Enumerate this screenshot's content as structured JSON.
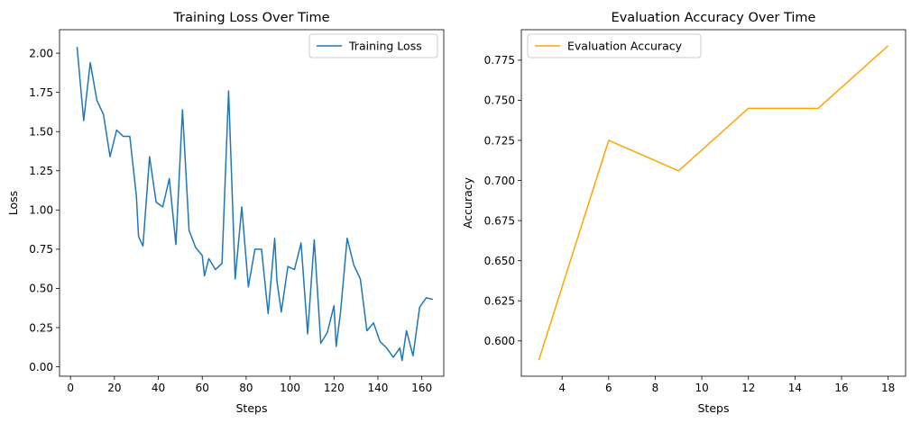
{
  "chart_data": [
    {
      "type": "line",
      "title": "Training Loss Over Time",
      "xlabel": "Steps",
      "ylabel": "Loss",
      "xlim": [
        -5,
        170
      ],
      "ylim": [
        -0.06,
        2.15
      ],
      "xticks": [
        0,
        20,
        40,
        60,
        80,
        100,
        120,
        140,
        160
      ],
      "yticks": [
        0.0,
        0.25,
        0.5,
        0.75,
        1.0,
        1.25,
        1.5,
        1.75,
        2.0
      ],
      "ytick_decimals": 2,
      "legend": "top-right",
      "grid": false,
      "series": [
        {
          "name": "Training Loss",
          "color": "#1f77b4",
          "x": [
            3,
            6,
            9,
            12,
            15,
            18,
            21,
            24,
            27,
            30,
            31,
            33,
            36,
            39,
            42,
            45,
            48,
            51,
            54,
            57,
            60,
            61,
            63,
            66,
            69,
            72,
            75,
            78,
            81,
            84,
            87,
            90,
            93,
            94,
            96,
            99,
            102,
            105,
            108,
            111,
            114,
            117,
            120,
            121,
            123,
            126,
            129,
            132,
            135,
            138,
            141,
            144,
            147,
            150,
            151,
            153,
            156,
            159,
            162,
            165
          ],
          "y": [
            2.04,
            1.57,
            1.94,
            1.7,
            1.61,
            1.34,
            1.51,
            1.47,
            1.47,
            1.09,
            0.83,
            0.77,
            1.34,
            1.05,
            1.02,
            1.2,
            0.78,
            1.64,
            0.87,
            0.76,
            0.71,
            0.58,
            0.69,
            0.62,
            0.66,
            1.76,
            0.56,
            1.02,
            0.51,
            0.75,
            0.75,
            0.34,
            0.82,
            0.55,
            0.35,
            0.64,
            0.62,
            0.79,
            0.21,
            0.81,
            0.15,
            0.22,
            0.39,
            0.13,
            0.35,
            0.82,
            0.65,
            0.56,
            0.23,
            0.28,
            0.16,
            0.12,
            0.06,
            0.12,
            0.04,
            0.23,
            0.07,
            0.38,
            0.44,
            0.43
          ]
        }
      ]
    },
    {
      "type": "line",
      "title": "Evaluation Accuracy Over Time",
      "xlabel": "Steps",
      "ylabel": "Accuracy",
      "xlim": [
        2.25,
        18.75
      ],
      "ylim": [
        0.578,
        0.794
      ],
      "xticks": [
        4,
        6,
        8,
        10,
        12,
        14,
        16,
        18
      ],
      "yticks": [
        0.6,
        0.625,
        0.65,
        0.675,
        0.7,
        0.725,
        0.75,
        0.775
      ],
      "ytick_decimals": 3,
      "legend": "top-left",
      "grid": false,
      "series": [
        {
          "name": "Evaluation Accuracy",
          "color": "#ffa500",
          "x": [
            3,
            6,
            9,
            12,
            15,
            18
          ],
          "y": [
            0.588,
            0.725,
            0.706,
            0.745,
            0.745,
            0.784
          ]
        }
      ]
    }
  ]
}
